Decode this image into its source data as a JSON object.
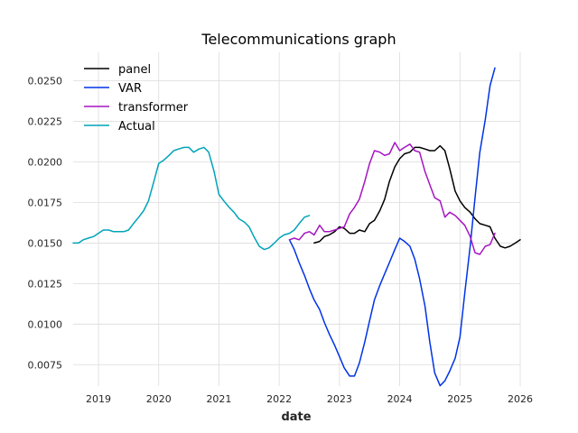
{
  "chart_data": {
    "type": "line",
    "title": "Telecommunications graph",
    "xlabel": "date",
    "ylabel": "",
    "xlim": [
      2018.58,
      2026.0
    ],
    "ylim": [
      0.00618,
      0.02676
    ],
    "x_ticks": [
      2019,
      2020,
      2021,
      2022,
      2023,
      2024,
      2025,
      2026
    ],
    "x_tick_labels": [
      "2019",
      "2020",
      "2021",
      "2022",
      "2023",
      "2024",
      "2025",
      "2026"
    ],
    "y_ticks": [
      0.0075,
      0.01,
      0.0125,
      0.015,
      0.0175,
      0.02,
      0.0225,
      0.025
    ],
    "y_tick_labels": [
      "0.0075",
      "0.0100",
      "0.0125",
      "0.0150",
      "0.0175",
      "0.0200",
      "0.0225",
      "0.0250"
    ],
    "grid": true,
    "legend_position": "top-left",
    "series": [
      {
        "name": "panel",
        "color": "#000000",
        "x": [
          2022.58,
          2022.67,
          2022.75,
          2022.83,
          2022.92,
          2023.0,
          2023.08,
          2023.17,
          2023.25,
          2023.33,
          2023.42,
          2023.5,
          2023.58,
          2023.67,
          2023.75,
          2023.83,
          2023.92,
          2024.0,
          2024.08,
          2024.17,
          2024.25,
          2024.33,
          2024.42,
          2024.5,
          2024.58,
          2024.67,
          2024.75,
          2024.83,
          2024.92,
          2025.0,
          2025.08,
          2025.17,
          2025.25,
          2025.33,
          2025.42,
          2025.5,
          2025.58,
          2025.67,
          2025.75,
          2025.83,
          2025.92,
          2026.0
        ],
        "values": [
          0.015,
          0.0151,
          0.0154,
          0.0155,
          0.0157,
          0.016,
          0.0159,
          0.0156,
          0.0156,
          0.0158,
          0.0157,
          0.0162,
          0.0164,
          0.017,
          0.0177,
          0.0188,
          0.0197,
          0.0202,
          0.0205,
          0.0206,
          0.0209,
          0.0209,
          0.0208,
          0.0207,
          0.0207,
          0.021,
          0.0207,
          0.0196,
          0.0182,
          0.0176,
          0.0172,
          0.0169,
          0.0165,
          0.0162,
          0.0161,
          0.016,
          0.0153,
          0.0148,
          0.0147,
          0.0148,
          0.015,
          0.0152
        ]
      },
      {
        "name": "VAR",
        "color": "#0033e6",
        "x": [
          2022.17,
          2022.25,
          2022.33,
          2022.42,
          2022.5,
          2022.58,
          2022.67,
          2022.75,
          2022.83,
          2022.92,
          2023.0,
          2023.08,
          2023.17,
          2023.25,
          2023.33,
          2023.42,
          2023.5,
          2023.58,
          2023.67,
          2023.75,
          2023.83,
          2023.92,
          2024.0,
          2024.08,
          2024.17,
          2024.25,
          2024.33,
          2024.42,
          2024.5,
          2024.58,
          2024.67,
          2024.75,
          2024.83,
          2024.92,
          2025.0,
          2025.08,
          2025.17,
          2025.25,
          2025.33,
          2025.42,
          2025.5,
          2025.58
        ],
        "values": [
          0.0152,
          0.0146,
          0.0138,
          0.013,
          0.0122,
          0.0115,
          0.0109,
          0.0101,
          0.0094,
          0.0087,
          0.008,
          0.0073,
          0.0068,
          0.0068,
          0.0076,
          0.0089,
          0.0102,
          0.0115,
          0.0124,
          0.0131,
          0.0138,
          0.0146,
          0.0153,
          0.0151,
          0.0148,
          0.014,
          0.0128,
          0.0111,
          0.0089,
          0.007,
          0.0062,
          0.0065,
          0.0071,
          0.0079,
          0.0092,
          0.0119,
          0.0148,
          0.0178,
          0.0206,
          0.0226,
          0.0247,
          0.0258
        ]
      },
      {
        "name": "transformer",
        "color": "#a614c2",
        "x": [
          2022.17,
          2022.25,
          2022.33,
          2022.42,
          2022.5,
          2022.58,
          2022.67,
          2022.75,
          2022.83,
          2022.92,
          2023.0,
          2023.08,
          2023.17,
          2023.25,
          2023.33,
          2023.42,
          2023.5,
          2023.58,
          2023.67,
          2023.75,
          2023.83,
          2023.92,
          2024.0,
          2024.08,
          2024.17,
          2024.25,
          2024.33,
          2024.42,
          2024.5,
          2024.58,
          2024.67,
          2024.75,
          2024.83,
          2024.92,
          2025.0,
          2025.08,
          2025.17,
          2025.25,
          2025.33,
          2025.42,
          2025.5,
          2025.58
        ],
        "values": [
          0.0152,
          0.0153,
          0.0152,
          0.0156,
          0.0157,
          0.0155,
          0.0161,
          0.0157,
          0.0157,
          0.0158,
          0.0159,
          0.016,
          0.0168,
          0.0172,
          0.0177,
          0.0188,
          0.0199,
          0.0207,
          0.0206,
          0.0204,
          0.0205,
          0.0212,
          0.0207,
          0.0209,
          0.0211,
          0.0207,
          0.0206,
          0.0194,
          0.0186,
          0.0178,
          0.0176,
          0.0166,
          0.0169,
          0.0167,
          0.0164,
          0.0161,
          0.0154,
          0.0144,
          0.0143,
          0.0148,
          0.0149,
          0.0156
        ]
      },
      {
        "name": "Actual",
        "color": "#00a3b8",
        "x": [
          2018.58,
          2018.67,
          2018.75,
          2018.83,
          2018.92,
          2019.0,
          2019.08,
          2019.17,
          2019.25,
          2019.33,
          2019.42,
          2019.5,
          2019.58,
          2019.67,
          2019.75,
          2019.83,
          2019.92,
          2020.0,
          2020.08,
          2020.17,
          2020.25,
          2020.33,
          2020.42,
          2020.5,
          2020.58,
          2020.67,
          2020.75,
          2020.83,
          2020.92,
          2021.0,
          2021.08,
          2021.17,
          2021.25,
          2021.33,
          2021.42,
          2021.5,
          2021.58,
          2021.67,
          2021.75,
          2021.83,
          2021.92,
          2022.0,
          2022.08,
          2022.17,
          2022.25,
          2022.33,
          2022.42,
          2022.5
        ],
        "values": [
          0.015,
          0.015,
          0.0152,
          0.0153,
          0.0154,
          0.0156,
          0.0158,
          0.0158,
          0.0157,
          0.0157,
          0.0157,
          0.0158,
          0.0162,
          0.0166,
          0.017,
          0.0176,
          0.0188,
          0.0199,
          0.0201,
          0.0204,
          0.0207,
          0.0208,
          0.0209,
          0.0209,
          0.0206,
          0.0208,
          0.0209,
          0.0206,
          0.0194,
          0.018,
          0.0176,
          0.0172,
          0.0169,
          0.0165,
          0.0163,
          0.016,
          0.0154,
          0.0148,
          0.0146,
          0.0147,
          0.015,
          0.0153,
          0.0155,
          0.0156,
          0.0158,
          0.0162,
          0.0166,
          0.0167
        ]
      }
    ]
  }
}
